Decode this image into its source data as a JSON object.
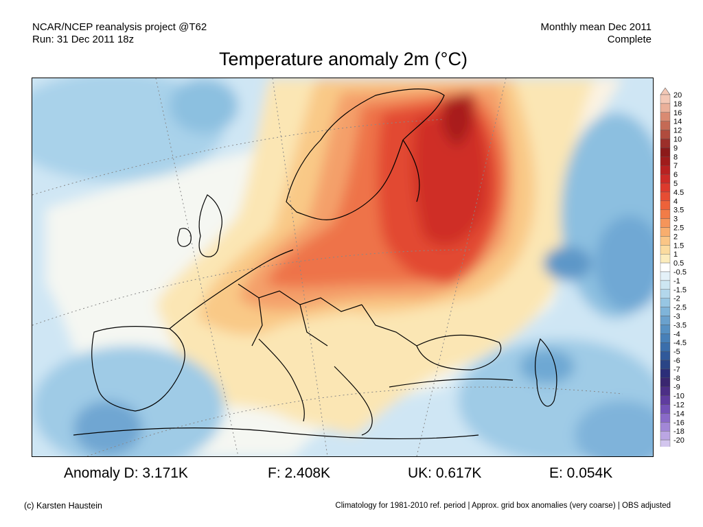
{
  "header": {
    "source_line": "NCAR/NCEP reanalysis project @T62",
    "run_line": "Run: 31 Dec 2011 18z",
    "period_line": "Monthly mean Dec 2011",
    "status_line": "Complete"
  },
  "title": "Temperature anomaly 2m (°C)",
  "colorbar": {
    "labels": [
      "20",
      "18",
      "16",
      "14",
      "12",
      "10",
      "9",
      "8",
      "7",
      "6",
      "5",
      "4.5",
      "4",
      "3.5",
      "3",
      "2.5",
      "2",
      "1.5",
      "1",
      "0.5",
      "-0.5",
      "-1",
      "-1.5",
      "-2",
      "-2.5",
      "-3",
      "-3.5",
      "-4",
      "-4.5",
      "-5",
      "-6",
      "-7",
      "-8",
      "-9",
      "-10",
      "-12",
      "-14",
      "-16",
      "-18",
      "-20"
    ],
    "colors": [
      "#f3c8b6",
      "#eab09a",
      "#d98a72",
      "#c46a55",
      "#b04c3e",
      "#9c2f2a",
      "#8c1a1a",
      "#a01c1c",
      "#b82121",
      "#cc2b27",
      "#dc3a2d",
      "#e64d33",
      "#ed623a",
      "#f27c47",
      "#f5955a",
      "#f8ae6e",
      "#fac686",
      "#fbdb9f",
      "#fcecbd",
      "#ffffff",
      "#e4f1f8",
      "#cde6f2",
      "#b3d7ec",
      "#97c6e3",
      "#7fb4d9",
      "#6aa1cd",
      "#5791c3",
      "#4780b8",
      "#3a6eab",
      "#30599a",
      "#2a4586",
      "#2b2e79",
      "#3a2670",
      "#4c2e86",
      "#5f3c9f",
      "#7351b6",
      "#8a6ac8",
      "#a287d6",
      "#bba6e3",
      "#d3c6ee"
    ]
  },
  "stats": [
    {
      "text": "Anomaly D: 3.171K"
    },
    {
      "text": "F: 2.408K"
    },
    {
      "text": "UK: 0.617K"
    },
    {
      "text": "E: 0.054K"
    }
  ],
  "footer": {
    "credit": "(c) Karsten Haustein",
    "note": "Climatology for 1981-2010 ref. period | Approx. grid box anomalies (very coarse) | OBS adjusted"
  }
}
